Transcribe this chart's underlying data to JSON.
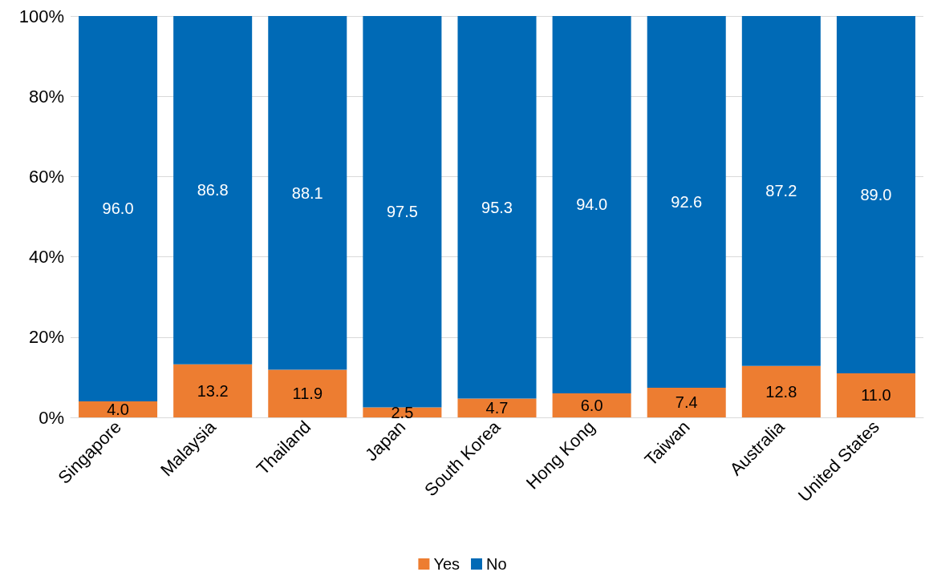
{
  "chart_data": {
    "type": "bar",
    "stacked": true,
    "categories": [
      "Singapore",
      "Malaysia",
      "Thailand",
      "Japan",
      "South Korea",
      "Hong Kong",
      "Taiwan",
      "Australia",
      "United States"
    ],
    "series": [
      {
        "name": "Yes",
        "color": "#ed7d31",
        "values": [
          4.0,
          13.2,
          11.9,
          2.5,
          4.7,
          6.0,
          7.4,
          12.8,
          11.0
        ],
        "value_labels": [
          "4.0",
          "13.2",
          "11.9",
          "2.5",
          "4.7",
          "6.0",
          "7.4",
          "12.8",
          "11.0"
        ]
      },
      {
        "name": "No",
        "color": "#006ab6",
        "values": [
          96.0,
          86.8,
          88.1,
          97.5,
          95.3,
          94.0,
          92.6,
          87.2,
          89.0
        ],
        "value_labels": [
          "96.0",
          "86.8",
          "88.1",
          "97.5",
          "95.3",
          "94.0",
          "92.6",
          "87.2",
          "89.0"
        ]
      }
    ],
    "ylim": [
      0,
      100
    ],
    "yticks": [
      {
        "value": 0,
        "label": "0%"
      },
      {
        "value": 20,
        "label": "20%"
      },
      {
        "value": 40,
        "label": "40%"
      },
      {
        "value": 60,
        "label": "60%"
      },
      {
        "value": 80,
        "label": "80%"
      },
      {
        "value": 100,
        "label": "100%"
      }
    ],
    "grid": "y",
    "legend": "bottom"
  }
}
